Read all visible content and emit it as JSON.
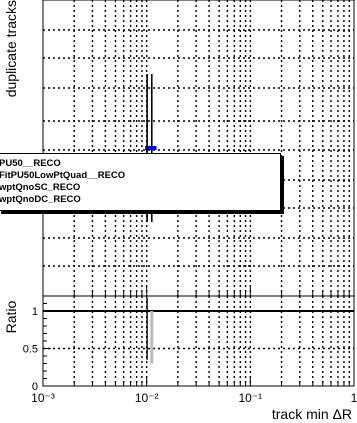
{
  "chart_data": [
    {
      "type": "line",
      "ylabel": "duplicate tracks",
      "xscale": "log",
      "xlim": [
        0.001,
        1
      ],
      "grid": true,
      "series": [
        {
          "name": "PU50__RECO",
          "color": "#000000",
          "x": [
            0.0101
          ],
          "y": [
            0.5
          ],
          "yerr": [
            0.25
          ]
        },
        {
          "name": "FitPU50LowPtQuad__RECO",
          "color": "#0000cc",
          "x": [
            0.0105
          ],
          "y": [
            0.5
          ],
          "yerr": [
            0.0
          ]
        },
        {
          "name": "wptQnoSC_RECO",
          "color": "#000000",
          "x": [
            0.0112
          ],
          "y": [
            0.5
          ],
          "yerr": [
            0.25
          ]
        },
        {
          "name": "wptQnoDC_RECO",
          "color": "#000000",
          "x": [
            0.0119
          ],
          "y": [
            0.5
          ],
          "yerr": [
            0.0
          ]
        }
      ]
    },
    {
      "type": "line",
      "ylabel": "Ratio",
      "xlabel": "track min ΔR",
      "xscale": "log",
      "xlim": [
        0.001,
        1
      ],
      "ylim": [
        0,
        1.2
      ],
      "yticks": [
        "0",
        "0.5",
        "1"
      ],
      "xticks": [
        "10⁻³",
        "10⁻²",
        "10⁻¹",
        "1"
      ],
      "grid": true,
      "series": [
        {
          "name": "ratio",
          "color": "#bbbbbb",
          "x": [
            0.0112
          ],
          "y": [
            0.65
          ],
          "yerr": [
            0.35
          ]
        }
      ]
    }
  ],
  "legend": {
    "entries": [
      "PU50__RECO",
      "FitPU50LowPtQuad__RECO",
      "wptQnoSC_RECO",
      "wptQnoDC_RECO"
    ]
  }
}
